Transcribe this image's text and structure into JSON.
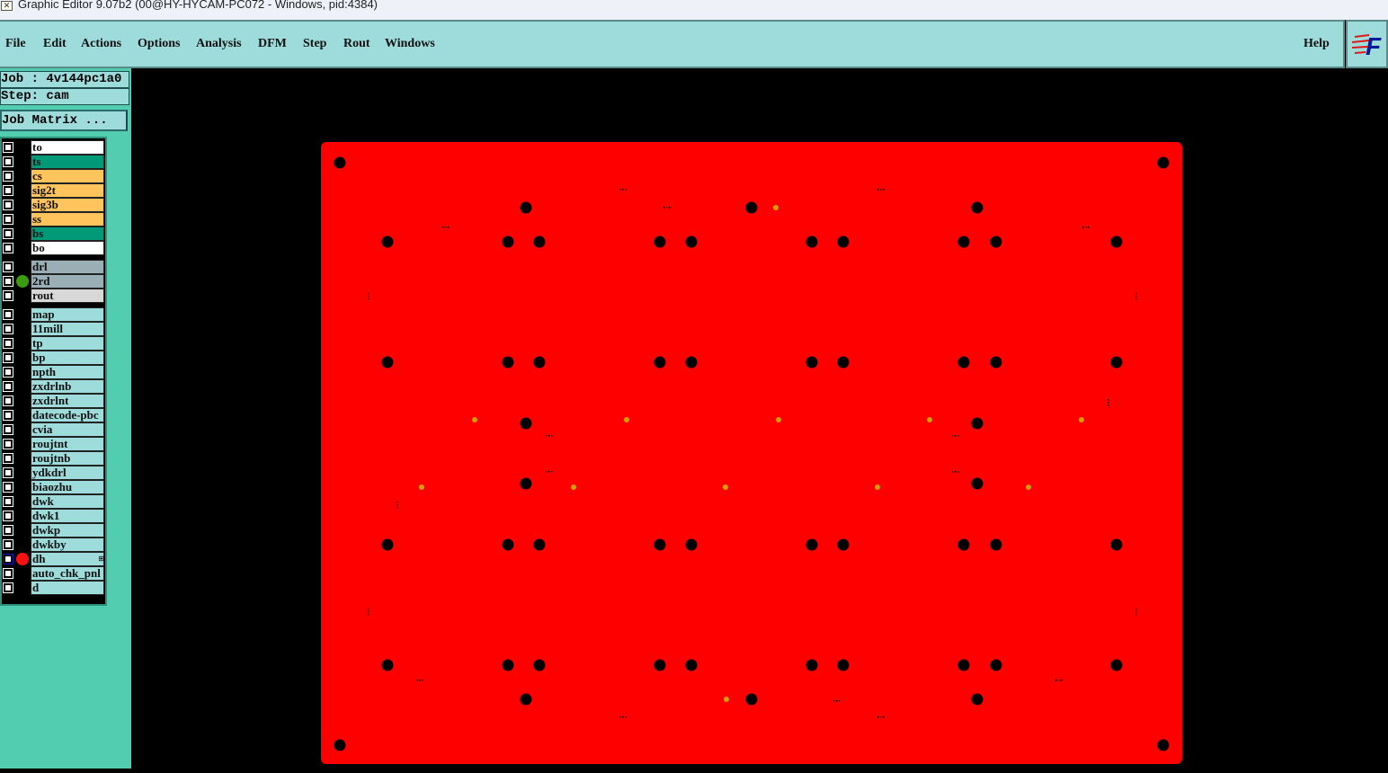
{
  "window": {
    "title": "Graphic Editor 9.07b2 (00@HY-HYCAM-PC072 - Windows, pid:4384)"
  },
  "menu": {
    "items": [
      "File",
      "Edit",
      "Actions",
      "Options",
      "Analysis",
      "DFM",
      "Step",
      "Rout",
      "Windows"
    ],
    "help": "Help"
  },
  "info": {
    "job": "Job : 4v144pc1a0",
    "step": "Step: cam",
    "job_matrix": "Job Matrix ..."
  },
  "layers": [
    {
      "name": "to",
      "color": "#ffffff"
    },
    {
      "name": "ts",
      "color": "#009a78"
    },
    {
      "name": "cs",
      "color": "#ffc45c"
    },
    {
      "name": "sig2t",
      "color": "#ffc45c"
    },
    {
      "name": "sig3b",
      "color": "#ffc45c"
    },
    {
      "name": "ss",
      "color": "#ffc45c"
    },
    {
      "name": "bs",
      "color": "#009a78"
    },
    {
      "name": "bo",
      "color": "#ffffff"
    },
    {
      "name": "drl",
      "color": "#9aaeb6"
    },
    {
      "name": "2rd",
      "color": "#9aaeb6",
      "indicator": "#3a9a10"
    },
    {
      "name": "rout",
      "color": "#d8d8d8"
    },
    {
      "name": "map",
      "color": "#9edcdc"
    },
    {
      "name": "11mill",
      "color": "#9edcdc"
    },
    {
      "name": "tp",
      "color": "#9edcdc"
    },
    {
      "name": "bp",
      "color": "#9edcdc"
    },
    {
      "name": "npth",
      "color": "#9edcdc"
    },
    {
      "name": "zxdrlnb",
      "color": "#9edcdc"
    },
    {
      "name": "zxdrlnt",
      "color": "#9edcdc"
    },
    {
      "name": "datecode-pbc",
      "color": "#9edcdc"
    },
    {
      "name": "cvia",
      "color": "#9edcdc"
    },
    {
      "name": "roujtnt",
      "color": "#9edcdc"
    },
    {
      "name": "roujtnb",
      "color": "#9edcdc"
    },
    {
      "name": "ydkdrl",
      "color": "#9edcdc"
    },
    {
      "name": "biaozhu",
      "color": "#9edcdc"
    },
    {
      "name": "dwk",
      "color": "#9edcdc"
    },
    {
      "name": "dwk1",
      "color": "#9edcdc"
    },
    {
      "name": "dwkp",
      "color": "#9edcdc"
    },
    {
      "name": "dwkby",
      "color": "#9edcdc"
    },
    {
      "name": "dh",
      "color": "#9edcdc",
      "indicator": "#ff1010",
      "selected": true,
      "plus": "⊞"
    },
    {
      "name": "auto_chk_pnl",
      "color": "#9edcdc"
    },
    {
      "name": "d",
      "color": "#9edcdc"
    }
  ],
  "colors": {
    "board": "#ff0000",
    "hole": "#000000",
    "pad": "#d4a000"
  }
}
